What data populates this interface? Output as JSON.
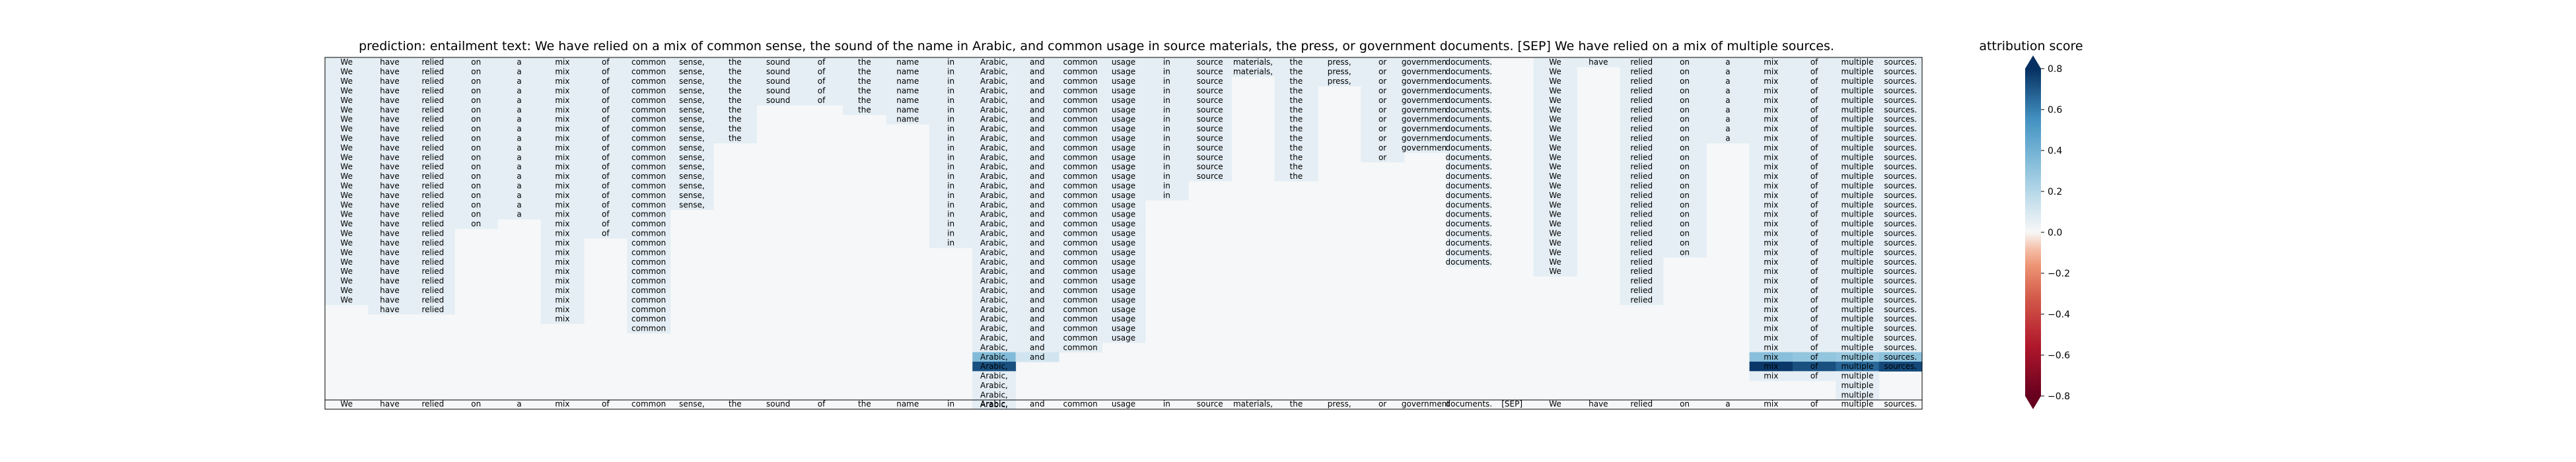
{
  "chart_data": {
    "type": "heatmap",
    "title": "prediction:  entailment      text:  We have relied on a mix of common sense, the sound of the name in Arabic, and common usage in source materials, the press, or government documents. [SEP] We have relied on a mix of multiple sources.",
    "tokens": [
      "We",
      "have",
      "relied",
      "on",
      "a",
      "mix",
      "of",
      "common",
      "sense,",
      "the",
      "sound",
      "of",
      "the",
      "name",
      "in",
      "Arabic,",
      "and",
      "common",
      "usage",
      "in",
      "source",
      "materials,",
      "the",
      "press,",
      "or",
      "government",
      "documents.",
      "[SEP]",
      "We",
      "have",
      "relied",
      "on",
      "a",
      "mix",
      "of",
      "multiple",
      "sources."
    ],
    "rows": 37,
    "coverage": {
      "We": [
        0,
        25
      ],
      "have": [
        0,
        26
      ],
      "relied": [
        0,
        26
      ],
      "on": [
        0,
        17
      ],
      "a": [
        0,
        16
      ],
      "mix": [
        0,
        27
      ],
      "of": [
        0,
        18
      ],
      "common": [
        0,
        28
      ],
      "sense,": [
        0,
        15
      ],
      "the": [
        0,
        8
      ],
      "sound": [
        0,
        4
      ],
      "of#2": [
        0,
        4
      ],
      "the#2": [
        0,
        5
      ],
      "name": [
        0,
        6
      ],
      "in": [
        0,
        19
      ],
      "Arabic,": [
        0,
        36
      ],
      "and": [
        0,
        30
      ],
      "common#2": [
        0,
        30
      ],
      "usage": [
        0,
        29
      ],
      "in#2": [
        0,
        14
      ],
      "source": [
        0,
        12
      ],
      "materials,": [
        0,
        1
      ],
      "the#3": [
        0,
        12
      ],
      "press,": [
        0,
        2
      ],
      "or": [
        0,
        10
      ],
      "government": [
        0,
        9
      ],
      "documents.": [
        0,
        21
      ],
      "[SEP]": [],
      "We#2": [
        0,
        22
      ],
      "have#2": [
        0,
        0
      ],
      "relied#2": [
        0,
        25
      ],
      "on#2": [
        0,
        20
      ],
      "a#2": [
        0,
        8
      ],
      "mix#2": [
        0,
        33
      ],
      "of#3": [
        0,
        33
      ],
      "multiple": [
        0,
        35
      ],
      "sources.": [
        0,
        32
      ]
    },
    "highlights": [
      {
        "col": "Arabic,",
        "row": 31,
        "value": 0.35
      },
      {
        "col": "and",
        "row": 31,
        "value": 0.12
      },
      {
        "col": "Arabic,",
        "row": 32,
        "value": 0.72
      },
      {
        "col": "mix#2",
        "row": 31,
        "value": 0.33
      },
      {
        "col": "of#3",
        "row": 31,
        "value": 0.3
      },
      {
        "col": "multiple",
        "row": 31,
        "value": 0.28
      },
      {
        "col": "sources.",
        "row": 31,
        "value": 0.32
      },
      {
        "col": "mix#2",
        "row": 32,
        "value": 0.78
      },
      {
        "col": "of#3",
        "row": 32,
        "value": 0.72
      },
      {
        "col": "multiple",
        "row": 32,
        "value": 0.66
      },
      {
        "col": "sources.",
        "row": 32,
        "value": 0.74
      }
    ],
    "colorbar": {
      "label": "attribution score",
      "ticks": [
        "0.8",
        "0.6",
        "0.4",
        "0.2",
        "0.0",
        "−0.2",
        "−0.4",
        "−0.6",
        "−0.8"
      ],
      "range": [
        -0.8,
        0.8
      ],
      "colormap": "RdBu"
    }
  }
}
